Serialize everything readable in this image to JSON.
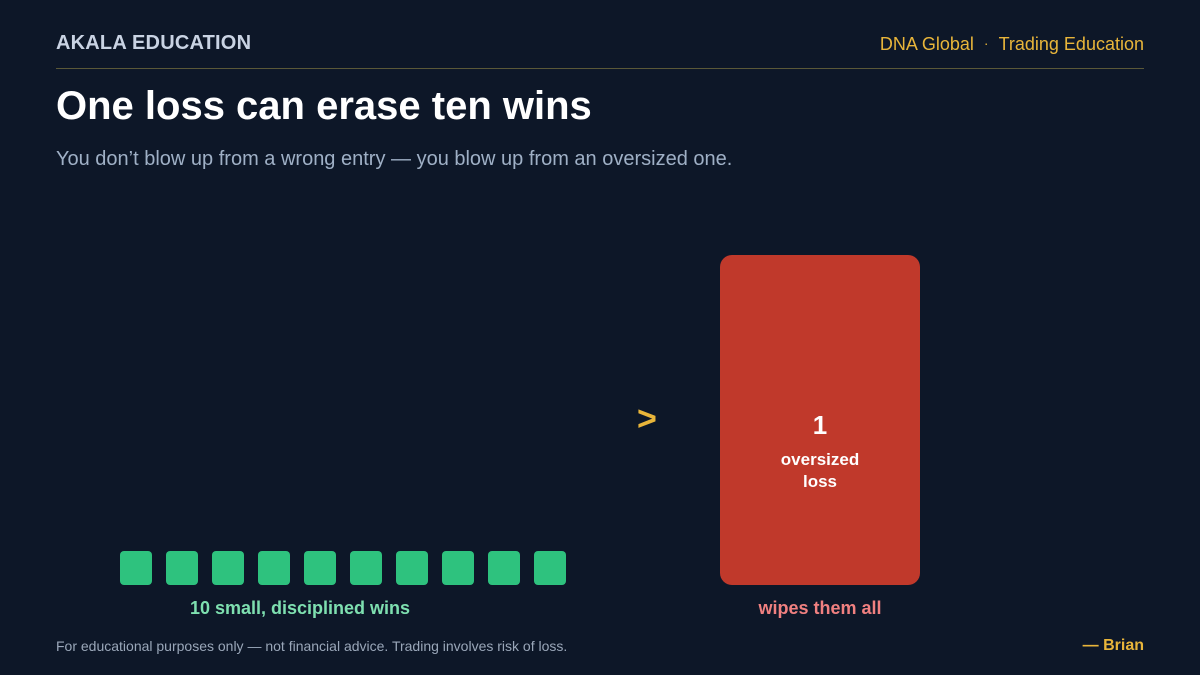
{
  "header": {
    "brand": "AKALA EDUCATION",
    "org": "DNA Global",
    "separator": "·",
    "tagline": "Trading Education"
  },
  "title": "One loss can erase ten wins",
  "subtitle": "You don’t blow up from a wrong entry — you blow up from an oversized one.",
  "comparison": {
    "wins_count": 10,
    "wins_label": "10 small, disciplined wins",
    "operator": ">",
    "loss_count": "1",
    "loss_text_line1": "oversized",
    "loss_text_line2": "loss",
    "loss_label": "wipes them all"
  },
  "colors": {
    "background": "#0d1728",
    "win": "#2ec27e",
    "loss": "#c0392b",
    "accent": "#e8b53a"
  },
  "footer": {
    "disclaimer": "For educational purposes only — not financial advice. Trading involves risk of loss.",
    "signature": "— Brian"
  }
}
